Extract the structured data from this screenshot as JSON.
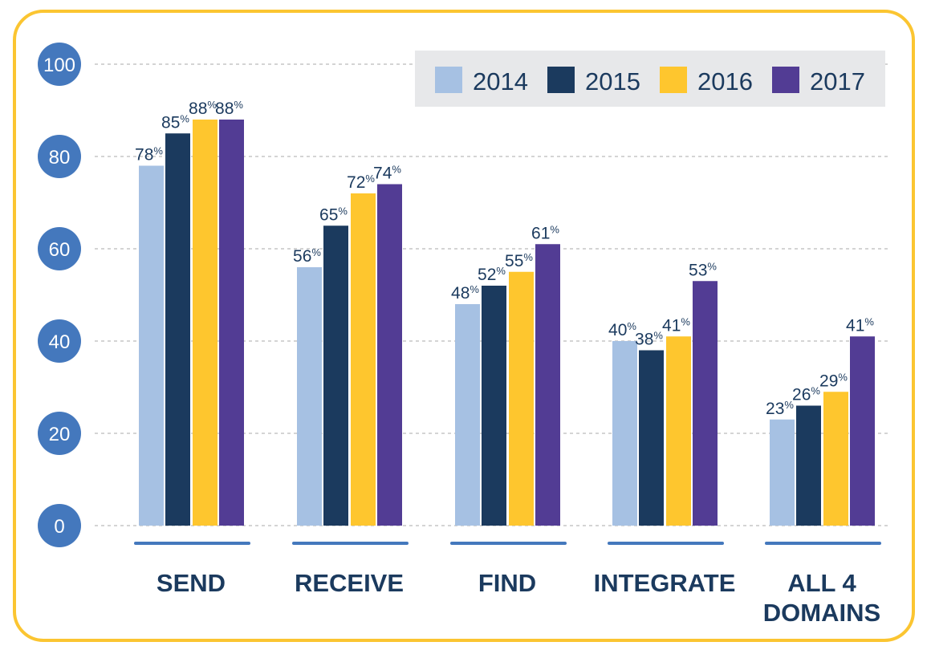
{
  "chart_data": {
    "type": "bar",
    "categories": [
      [
        "SEND"
      ],
      [
        "RECEIVE"
      ],
      [
        "FIND"
      ],
      [
        "INTEGRATE"
      ],
      [
        "ALL 4",
        "DOMAINS"
      ]
    ],
    "series": [
      {
        "name": "2014",
        "color": "#a6c1e3",
        "values": [
          78,
          56,
          48,
          40,
          23
        ]
      },
      {
        "name": "2015",
        "color": "#1b3a5e",
        "values": [
          85,
          65,
          52,
          38,
          26
        ]
      },
      {
        "name": "2016",
        "color": "#fec62e",
        "values": [
          88,
          72,
          55,
          41,
          29
        ]
      },
      {
        "name": "2017",
        "color": "#523c94",
        "values": [
          88,
          74,
          61,
          53,
          41
        ]
      }
    ],
    "value_suffix": "%",
    "yticks": [
      0,
      20,
      40,
      60,
      80,
      100
    ],
    "ylim": [
      0,
      100
    ],
    "grid": true,
    "legend": "top-right",
    "colors": {
      "axis_circle": "#4478bd",
      "frame": "#fbc531",
      "legend_bg": "#e7e8ea",
      "grid": "#a8a8a8"
    }
  }
}
